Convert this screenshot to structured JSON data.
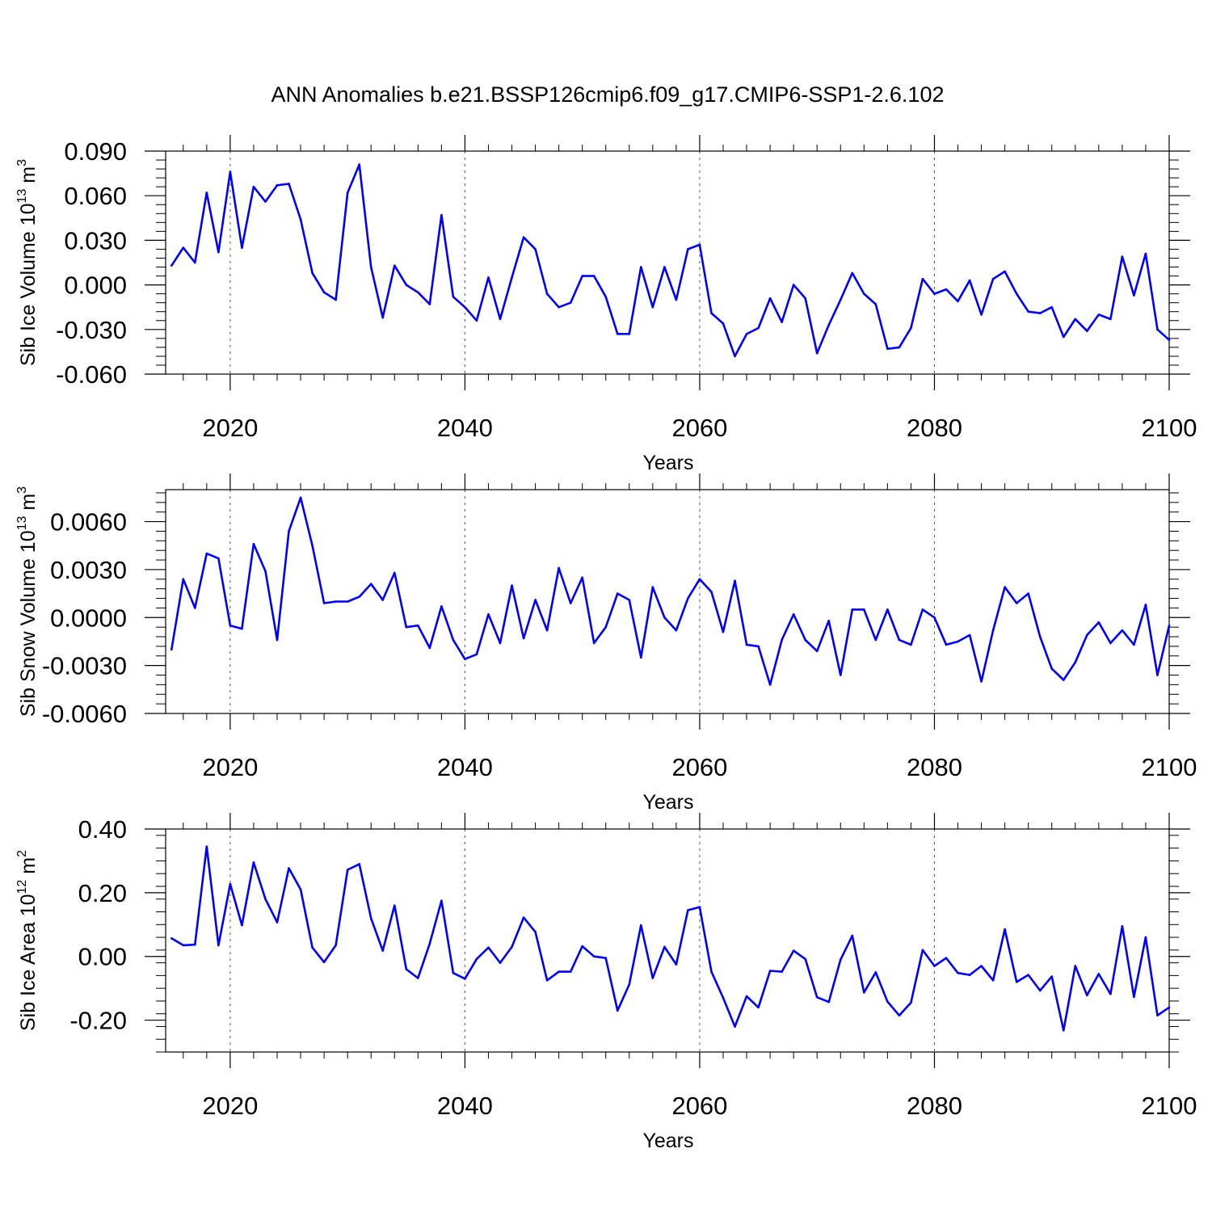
{
  "title": "ANN Anomalies b.e21.BSSP126cmip6.f09_g17.CMIP6-SSP1-2.6.102",
  "colors": {
    "line": "#0000ff",
    "axis": "#000000",
    "grid": "#555555"
  },
  "chart_data": [
    {
      "type": "line",
      "ylabel_main": "Sib Ice Volume 10",
      "ylabel_exp": "13",
      "ylabel_unit": " m",
      "ylabel_unit_exp": "3",
      "xlabel": "Years",
      "xlim": [
        2014.5,
        2100
      ],
      "ylim": [
        -0.06,
        0.09
      ],
      "yticks": [
        -0.06,
        -0.03,
        0.0,
        0.03,
        0.06,
        0.09
      ],
      "ytick_labels": [
        "-0.060",
        "-0.030",
        "0.000",
        "0.030",
        "0.060",
        "0.090"
      ],
      "xticks": [
        2020,
        2040,
        2060,
        2080,
        2100
      ],
      "xtick_labels": [
        "2020",
        "2040",
        "2060",
        "2080",
        "2100"
      ],
      "x_start": 2015,
      "values": [
        0.013,
        0.025,
        0.015,
        0.062,
        0.022,
        0.076,
        0.025,
        0.066,
        0.056,
        0.067,
        0.068,
        0.044,
        0.008,
        -0.005,
        -0.01,
        0.062,
        0.081,
        0.012,
        -0.022,
        0.013,
        0.0,
        -0.005,
        -0.013,
        0.047,
        -0.008,
        -0.015,
        -0.024,
        0.005,
        -0.023,
        0.005,
        0.032,
        0.024,
        -0.006,
        -0.015,
        -0.012,
        0.006,
        0.006,
        -0.008,
        -0.033,
        -0.033,
        0.012,
        -0.015,
        0.012,
        -0.01,
        0.024,
        0.027,
        -0.019,
        -0.026,
        -0.048,
        -0.033,
        -0.029,
        -0.009,
        -0.025,
        0.0,
        -0.009,
        -0.046,
        -0.027,
        -0.01,
        0.008,
        -0.006,
        -0.013,
        -0.043,
        -0.042,
        -0.029,
        0.004,
        -0.006,
        -0.003,
        -0.011,
        0.003,
        -0.02,
        0.004,
        0.009,
        -0.006,
        -0.018,
        -0.019,
        -0.015,
        -0.035,
        -0.023,
        -0.031,
        -0.02,
        -0.023,
        0.019,
        -0.007,
        0.021,
        -0.03,
        -0.037
      ]
    },
    {
      "type": "line",
      "ylabel_main": "Sib Snow Volume 10",
      "ylabel_exp": "13",
      "ylabel_unit": " m",
      "ylabel_unit_exp": "3",
      "xlabel": "Years",
      "xlim": [
        2014.5,
        2100
      ],
      "ylim": [
        -0.006,
        0.008
      ],
      "yticks": [
        -0.006,
        -0.003,
        0.0,
        0.003,
        0.006
      ],
      "ytick_labels": [
        "-0.0060",
        "-0.0030",
        "0.0000",
        "0.0030",
        "0.0060"
      ],
      "xticks": [
        2020,
        2040,
        2060,
        2080,
        2100
      ],
      "xtick_labels": [
        "2020",
        "2040",
        "2060",
        "2080",
        "2100"
      ],
      "x_start": 2015,
      "values": [
        -0.002,
        0.0024,
        0.0006,
        0.004,
        0.0037,
        -0.0005,
        -0.0007,
        0.0046,
        0.0029,
        -0.0014,
        0.0054,
        0.0075,
        0.0045,
        0.0009,
        0.001,
        0.001,
        0.0013,
        0.0021,
        0.0011,
        0.0028,
        -0.0006,
        -0.0005,
        -0.0019,
        0.0007,
        -0.0014,
        -0.0026,
        -0.0023,
        0.0002,
        -0.0016,
        0.002,
        -0.0013,
        0.0011,
        -0.0008,
        0.0031,
        0.0009,
        0.0025,
        -0.0016,
        -0.0006,
        0.0015,
        0.0011,
        -0.0025,
        0.0019,
        0.0,
        -0.0008,
        0.0012,
        0.0024,
        0.0016,
        -0.0009,
        0.0023,
        -0.0017,
        -0.0018,
        -0.0042,
        -0.0014,
        0.0002,
        -0.0014,
        -0.0021,
        -0.0002,
        -0.0036,
        0.0005,
        0.0005,
        -0.0014,
        0.0005,
        -0.0014,
        -0.0017,
        0.0005,
        0.0,
        -0.0017,
        -0.0015,
        -0.0011,
        -0.004,
        -0.0008,
        0.0019,
        0.0009,
        0.0015,
        -0.0012,
        -0.0032,
        -0.0039,
        -0.0028,
        -0.0011,
        -0.0003,
        -0.0016,
        -0.0008,
        -0.0017,
        0.0008,
        -0.0036,
        -0.0005
      ]
    },
    {
      "type": "line",
      "ylabel_main": "Sib Ice Area 10",
      "ylabel_exp": "12",
      "ylabel_unit": " m",
      "ylabel_unit_exp": "2",
      "xlabel": "Years",
      "xlim": [
        2014.5,
        2100
      ],
      "ylim": [
        -0.3,
        0.4
      ],
      "yticks": [
        -0.2,
        0.0,
        0.2,
        0.4
      ],
      "ytick_labels": [
        "-0.20",
        "0.00",
        "0.20",
        "0.40"
      ],
      "xticks": [
        2020,
        2040,
        2060,
        2080,
        2100
      ],
      "xtick_labels": [
        "2020",
        "2040",
        "2060",
        "2080",
        "2100"
      ],
      "x_start": 2015,
      "values": [
        0.057,
        0.035,
        0.037,
        0.345,
        0.035,
        0.227,
        0.098,
        0.295,
        0.18,
        0.107,
        0.277,
        0.21,
        0.028,
        -0.018,
        0.035,
        0.272,
        0.29,
        0.12,
        0.018,
        0.16,
        -0.04,
        -0.068,
        0.04,
        0.175,
        -0.052,
        -0.07,
        -0.008,
        0.028,
        -0.02,
        0.03,
        0.122,
        0.077,
        -0.075,
        -0.048,
        -0.048,
        0.032,
        0.0,
        -0.005,
        -0.17,
        -0.088,
        0.098,
        -0.068,
        0.03,
        -0.025,
        0.145,
        0.155,
        -0.048,
        -0.13,
        -0.22,
        -0.125,
        -0.16,
        -0.045,
        -0.048,
        0.018,
        -0.008,
        -0.128,
        -0.143,
        -0.01,
        0.065,
        -0.113,
        -0.05,
        -0.142,
        -0.185,
        -0.145,
        0.02,
        -0.03,
        -0.005,
        -0.052,
        -0.058,
        -0.03,
        -0.075,
        0.085,
        -0.08,
        -0.058,
        -0.107,
        -0.063,
        -0.232,
        -0.03,
        -0.122,
        -0.055,
        -0.118,
        0.095,
        -0.127,
        0.06,
        -0.185,
        -0.16
      ]
    }
  ]
}
